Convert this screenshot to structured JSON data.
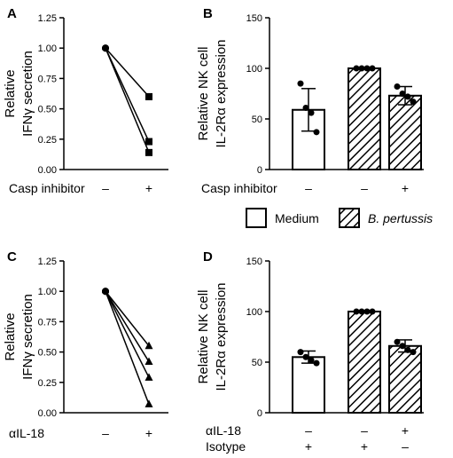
{
  "panels": {
    "A": "A",
    "B": "B",
    "C": "C",
    "D": "D"
  },
  "legend": {
    "medium": "Medium",
    "pertussis": "B. pertussis"
  },
  "chart_data": [
    {
      "panel": "A",
      "type": "line",
      "ylabel_lines": [
        "Relative",
        "IFNγ secretion"
      ],
      "ylim": [
        0,
        1.25
      ],
      "yticks": [
        "0.00",
        "0.25",
        "0.50",
        "0.75",
        "1.00",
        "1.25"
      ],
      "row_labels": [
        "Casp inhibitor"
      ],
      "categories": [
        [
          "–"
        ],
        [
          "+"
        ]
      ],
      "paired_values": [
        [
          1.0,
          0.6
        ],
        [
          1.0,
          0.23
        ],
        [
          1.0,
          0.14
        ]
      ],
      "marker_before": "circle",
      "marker_after": "square"
    },
    {
      "panel": "B",
      "type": "bar",
      "ylabel_lines": [
        "Relative NK cell",
        "IL-2Rα expression"
      ],
      "ylim": [
        0,
        150
      ],
      "yticks": [
        "0",
        "50",
        "100",
        "150"
      ],
      "row_labels": [
        "Casp inhibitor"
      ],
      "categories": [
        [
          "–"
        ],
        [
          "–"
        ],
        [
          "+"
        ]
      ],
      "values": [
        59,
        100,
        73
      ],
      "errors": [
        21,
        0,
        9
      ],
      "fill": [
        "medium",
        "pertussis",
        "pertussis"
      ],
      "points": [
        [
          85,
          61,
          56,
          37
        ],
        [
          100,
          100,
          100,
          100
        ],
        [
          82,
          75,
          72,
          67
        ]
      ],
      "point_shape": "circle"
    },
    {
      "panel": "C",
      "type": "line",
      "ylabel_lines": [
        "Relative",
        "IFNγ secretion"
      ],
      "ylim": [
        0,
        1.25
      ],
      "yticks": [
        "0.00",
        "0.25",
        "0.50",
        "0.75",
        "1.00",
        "1.25"
      ],
      "row_labels": [
        "αIL-18"
      ],
      "categories": [
        [
          "–"
        ],
        [
          "+"
        ]
      ],
      "paired_values": [
        [
          1.0,
          0.55
        ],
        [
          1.0,
          0.42
        ],
        [
          1.0,
          0.29
        ],
        [
          1.0,
          0.07
        ]
      ],
      "marker_before": "circle",
      "marker_after": "triangle"
    },
    {
      "panel": "D",
      "type": "bar",
      "ylabel_lines": [
        "Relative NK cell",
        "IL-2Rα expression"
      ],
      "ylim": [
        0,
        150
      ],
      "yticks": [
        "0",
        "50",
        "100",
        "150"
      ],
      "row_labels": [
        "αIL-18",
        "Isotype"
      ],
      "categories": [
        [
          "–",
          "+"
        ],
        [
          "–",
          "+"
        ],
        [
          "+",
          "–"
        ]
      ],
      "values": [
        55,
        100,
        66
      ],
      "errors": [
        6,
        0,
        6
      ],
      "fill": [
        "medium",
        "pertussis",
        "pertussis"
      ],
      "points": [
        [
          60,
          55,
          52,
          49
        ],
        [
          100,
          100,
          100,
          100
        ],
        [
          70,
          66,
          62,
          60
        ]
      ],
      "point_shape": "circle"
    }
  ]
}
